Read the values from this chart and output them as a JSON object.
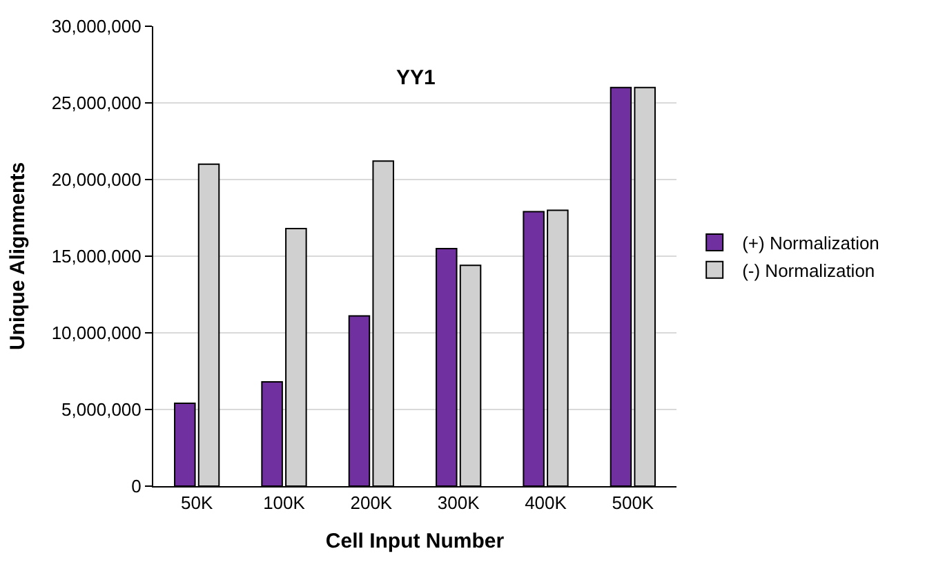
{
  "chart_data": {
    "type": "bar",
    "title": "YY1",
    "xlabel": "Cell Input Number",
    "ylabel": "Unique Alignments",
    "categories": [
      "50K",
      "100K",
      "200K",
      "300K",
      "400K",
      "500K"
    ],
    "series": [
      {
        "name": "(+) Normalization",
        "color": "#7030a0",
        "values": [
          5400000,
          6800000,
          11100000,
          15500000,
          17900000,
          26000000
        ]
      },
      {
        "name": "(-) Normalization",
        "color": "#d0d0d0",
        "values": [
          21000000,
          16800000,
          21200000,
          14400000,
          18000000,
          26000000
        ]
      }
    ],
    "ylim": [
      0,
      30000000
    ],
    "yticks": [
      {
        "value": 0,
        "label": "0"
      },
      {
        "value": 5000000,
        "label": "5,000,000"
      },
      {
        "value": 10000000,
        "label": "10,000,000"
      },
      {
        "value": 15000000,
        "label": "15,000,000"
      },
      {
        "value": 20000000,
        "label": "20,000,000"
      },
      {
        "value": 25000000,
        "label": "25,000,000"
      },
      {
        "value": 30000000,
        "label": "30,000,000"
      }
    ],
    "grid": "y",
    "legend": "right"
  }
}
